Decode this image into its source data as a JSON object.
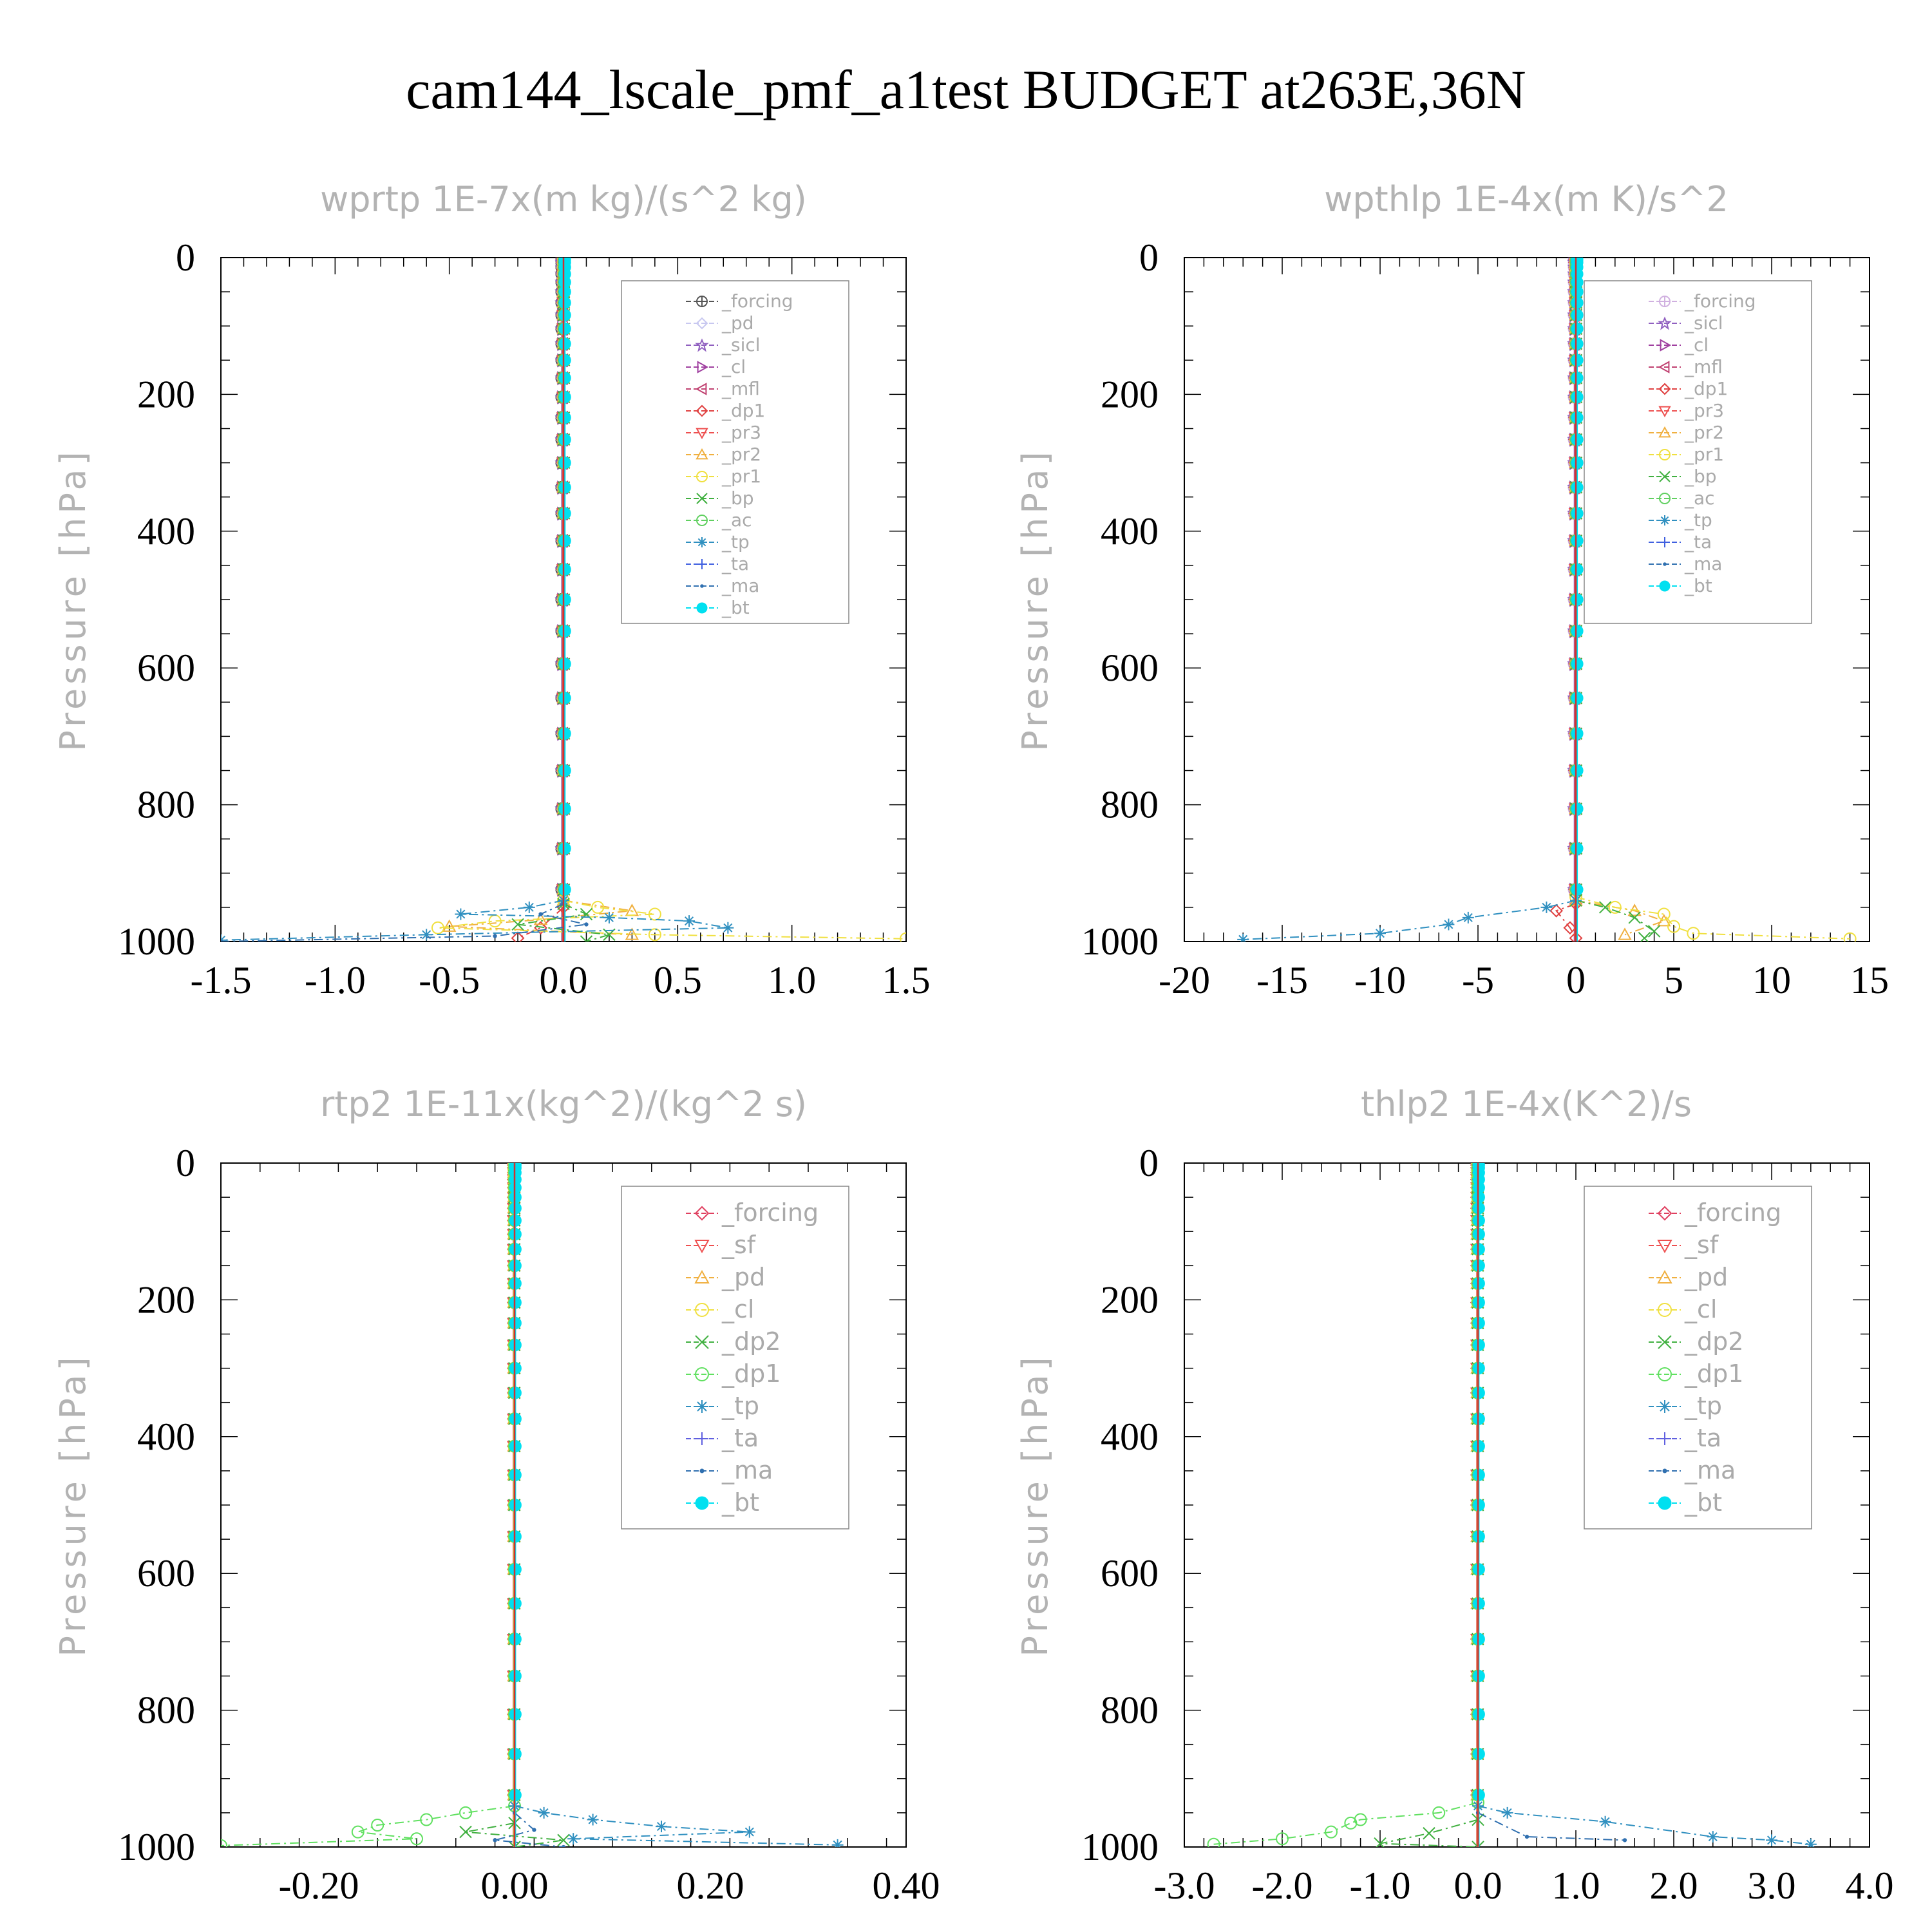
{
  "page": {
    "title": "cam144_lscale_pmf_a1test  BUDGET at263E,36N"
  },
  "chart_data": [
    {
      "type": "line",
      "title": "wprtp  1E-7x(m kg)/(s^2 kg)",
      "ylabel": "Pressure [hPa]",
      "xlim": [
        -1.5,
        1.5
      ],
      "ylim": [
        1000,
        0
      ],
      "xticks": [
        -1.5,
        -1.0,
        -0.5,
        0.0,
        0.5,
        1.0,
        1.5
      ],
      "xtick_labels": [
        "-1.5",
        "-1.0",
        "-0.5",
        "0.0",
        "0.5",
        "1.0",
        "1.5"
      ],
      "yticks": [
        0,
        200,
        400,
        600,
        800,
        1000
      ],
      "ytick_labels": [
        "0",
        "200",
        "400",
        "600",
        "800",
        "1000"
      ],
      "legend_position": "top-right",
      "series": [
        {
          "name": "_forcing",
          "color": "#555555",
          "marker": "circle-plus"
        },
        {
          "name": "_pd",
          "color": "#c8c8f0",
          "marker": "diamond"
        },
        {
          "name": "_sicl",
          "color": "#9060c0",
          "marker": "star"
        },
        {
          "name": "_cl",
          "color": "#a040a0",
          "marker": "triangle-right"
        },
        {
          "name": "_mfl",
          "color": "#c04070",
          "marker": "triangle-left"
        },
        {
          "name": "_dp1",
          "color": "#e04040",
          "marker": "diamond"
        },
        {
          "name": "_pr3",
          "color": "#ee5050",
          "marker": "triangle-down"
        },
        {
          "name": "_pr2",
          "color": "#f0b040",
          "marker": "triangle-up"
        },
        {
          "name": "_pr1",
          "color": "#f0e040",
          "marker": "circle"
        },
        {
          "name": "_bp",
          "color": "#40b040",
          "marker": "x"
        },
        {
          "name": "_ac",
          "color": "#60d060",
          "marker": "circle"
        },
        {
          "name": "_tp",
          "color": "#3090c0",
          "marker": "asterisk"
        },
        {
          "name": "_ta",
          "color": "#4060e0",
          "marker": "plus"
        },
        {
          "name": "_ma",
          "color": "#3070b0",
          "marker": "dot"
        },
        {
          "name": "_bt",
          "color": "#00e0f0",
          "marker": "filled-circle"
        }
      ],
      "near_surface": {
        "_tp": [
          [
            0.0,
            940
          ],
          [
            -0.15,
            950
          ],
          [
            -0.45,
            960
          ],
          [
            0.2,
            965
          ],
          [
            0.55,
            970
          ],
          [
            0.72,
            980
          ],
          [
            -0.6,
            990
          ],
          [
            -1.5,
            998
          ]
        ],
        "_pr1": [
          [
            0.0,
            940
          ],
          [
            0.15,
            950
          ],
          [
            0.4,
            960
          ],
          [
            -0.3,
            970
          ],
          [
            -0.55,
            980
          ],
          [
            0.4,
            990
          ],
          [
            1.5,
            996
          ]
        ],
        "_bp": [
          [
            0.0,
            945
          ],
          [
            0.1,
            960
          ],
          [
            -0.2,
            975
          ],
          [
            0.2,
            990
          ],
          [
            0.1,
            1000
          ]
        ],
        "_pr2": [
          [
            0.0,
            940
          ],
          [
            0.3,
            955
          ],
          [
            -0.1,
            968
          ],
          [
            -0.5,
            978
          ],
          [
            0.3,
            990
          ]
        ],
        "_ma": [
          [
            0.0,
            945
          ],
          [
            -0.1,
            960
          ],
          [
            0.1,
            975
          ],
          [
            -0.3,
            992
          ],
          [
            -1.5,
            1000
          ]
        ],
        "_dp1": [
          [
            0.0,
            950
          ],
          [
            -0.1,
            980
          ],
          [
            -0.2,
            995
          ]
        ]
      }
    },
    {
      "type": "line",
      "title": "wpthlp  1E-4x(m K)/s^2",
      "ylabel": "Pressure [hPa]",
      "xlim": [
        -20,
        15
      ],
      "ylim": [
        1000,
        0
      ],
      "xticks": [
        -20,
        -15,
        -10,
        -5,
        0,
        5,
        10,
        15
      ],
      "xtick_labels": [
        "-20",
        "-15",
        "-10",
        "-5",
        "0",
        "5",
        "10",
        "15"
      ],
      "yticks": [
        0,
        200,
        400,
        600,
        800,
        1000
      ],
      "ytick_labels": [
        "0",
        "200",
        "400",
        "600",
        "800",
        "1000"
      ],
      "legend_position": "top-right",
      "series": [
        {
          "name": "_forcing",
          "color": "#d0b0e0",
          "marker": "circle-plus"
        },
        {
          "name": "_sicl",
          "color": "#9060c0",
          "marker": "star"
        },
        {
          "name": "_cl",
          "color": "#a040a0",
          "marker": "triangle-right"
        },
        {
          "name": "_mfl",
          "color": "#c04070",
          "marker": "triangle-left"
        },
        {
          "name": "_dp1",
          "color": "#e04040",
          "marker": "diamond"
        },
        {
          "name": "_pr3",
          "color": "#ee5050",
          "marker": "triangle-down"
        },
        {
          "name": "_pr2",
          "color": "#f0b040",
          "marker": "triangle-up"
        },
        {
          "name": "_pr1",
          "color": "#f0e040",
          "marker": "circle"
        },
        {
          "name": "_bp",
          "color": "#40b040",
          "marker": "x"
        },
        {
          "name": "_ac",
          "color": "#60d060",
          "marker": "circle"
        },
        {
          "name": "_tp",
          "color": "#3090c0",
          "marker": "asterisk"
        },
        {
          "name": "_ta",
          "color": "#4060e0",
          "marker": "plus"
        },
        {
          "name": "_ma",
          "color": "#3070b0",
          "marker": "dot"
        },
        {
          "name": "_bt",
          "color": "#00e0f0",
          "marker": "filled-circle"
        }
      ],
      "near_surface": {
        "_tp": [
          [
            0.0,
            940
          ],
          [
            -1.5,
            950
          ],
          [
            -5.5,
            965
          ],
          [
            -6.5,
            975
          ],
          [
            -10,
            988
          ],
          [
            -17,
            997
          ]
        ],
        "_pr1": [
          [
            0.0,
            935
          ],
          [
            2.0,
            950
          ],
          [
            4.5,
            960
          ],
          [
            5.0,
            978
          ],
          [
            6.0,
            988
          ],
          [
            14,
            996
          ]
        ],
        "_bp": [
          [
            0.0,
            940
          ],
          [
            1.5,
            950
          ],
          [
            3.0,
            965
          ],
          [
            4.0,
            985
          ],
          [
            3.5,
            995
          ]
        ],
        "_pr2": [
          [
            0.0,
            940
          ],
          [
            3.0,
            955
          ],
          [
            4.5,
            970
          ],
          [
            2.5,
            990
          ]
        ],
        "_dp1": [
          [
            0.0,
            945
          ],
          [
            -1.0,
            955
          ],
          [
            -0.3,
            980
          ],
          [
            0.0,
            995
          ]
        ]
      }
    },
    {
      "type": "line",
      "title": "rtp2  1E-11x(kg^2)/(kg^2 s)",
      "ylabel": "Pressure [hPa]",
      "xlim": [
        -0.3,
        0.4
      ],
      "ylim": [
        1000,
        0
      ],
      "xticks": [
        -0.2,
        0.0,
        0.2,
        0.4
      ],
      "xtick_labels": [
        "-0.20",
        "0.00",
        "0.20",
        "0.40"
      ],
      "yticks": [
        0,
        200,
        400,
        600,
        800,
        1000
      ],
      "ytick_labels": [
        "0",
        "200",
        "400",
        "600",
        "800",
        "1000"
      ],
      "legend_position": "top-right",
      "series": [
        {
          "name": "_forcing",
          "color": "#e04060",
          "marker": "diamond"
        },
        {
          "name": "_sf",
          "color": "#ee5050",
          "marker": "triangle-down"
        },
        {
          "name": "_pd",
          "color": "#f0b040",
          "marker": "triangle-up"
        },
        {
          "name": "_cl",
          "color": "#f0e040",
          "marker": "circle"
        },
        {
          "name": "_dp2",
          "color": "#40b040",
          "marker": "x"
        },
        {
          "name": "_dp1",
          "color": "#60e060",
          "marker": "circle"
        },
        {
          "name": "_tp",
          "color": "#3090c0",
          "marker": "asterisk"
        },
        {
          "name": "_ta",
          "color": "#6060e0",
          "marker": "plus"
        },
        {
          "name": "_ma",
          "color": "#3070b0",
          "marker": "dot"
        },
        {
          "name": "_bt",
          "color": "#00e0f0",
          "marker": "filled-circle"
        }
      ],
      "near_surface": {
        "_dp1": [
          [
            0.0,
            940
          ],
          [
            -0.05,
            950
          ],
          [
            -0.09,
            960
          ],
          [
            -0.14,
            968
          ],
          [
            -0.16,
            978
          ],
          [
            -0.1,
            988
          ],
          [
            -0.3,
            998
          ]
        ],
        "_tp": [
          [
            0.0,
            940
          ],
          [
            0.03,
            950
          ],
          [
            0.08,
            960
          ],
          [
            0.15,
            970
          ],
          [
            0.24,
            978
          ],
          [
            0.06,
            988
          ],
          [
            0.33,
            997
          ]
        ],
        "_dp2": [
          [
            0.0,
            965
          ],
          [
            -0.05,
            978
          ],
          [
            0.05,
            990
          ],
          [
            0.0,
            1000
          ]
        ],
        "_ma": [
          [
            0.0,
            950
          ],
          [
            0.02,
            975
          ],
          [
            -0.02,
            990
          ],
          [
            0.05,
            1000
          ]
        ]
      }
    },
    {
      "type": "line",
      "title": "thlp2  1E-4x(K^2)/s",
      "ylabel": "Pressure [hPa]",
      "xlim": [
        -3.0,
        4.0
      ],
      "ylim": [
        1000,
        0
      ],
      "xticks": [
        -3.0,
        -2.0,
        -1.0,
        0.0,
        1.0,
        2.0,
        3.0,
        4.0
      ],
      "xtick_labels": [
        "-3.0",
        "-2.0",
        "-1.0",
        "0.0",
        "1.0",
        "2.0",
        "3.0",
        "4.0"
      ],
      "yticks": [
        0,
        200,
        400,
        600,
        800,
        1000
      ],
      "ytick_labels": [
        "0",
        "200",
        "400",
        "600",
        "800",
        "1000"
      ],
      "legend_position": "top-right",
      "series": [
        {
          "name": "_forcing",
          "color": "#e04060",
          "marker": "diamond"
        },
        {
          "name": "_sf",
          "color": "#ee5050",
          "marker": "triangle-down"
        },
        {
          "name": "_pd",
          "color": "#f0b040",
          "marker": "triangle-up"
        },
        {
          "name": "_cl",
          "color": "#f0e040",
          "marker": "circle"
        },
        {
          "name": "_dp2",
          "color": "#40b040",
          "marker": "x"
        },
        {
          "name": "_dp1",
          "color": "#60e060",
          "marker": "circle"
        },
        {
          "name": "_tp",
          "color": "#3090c0",
          "marker": "asterisk"
        },
        {
          "name": "_ta",
          "color": "#6060e0",
          "marker": "plus"
        },
        {
          "name": "_ma",
          "color": "#3070b0",
          "marker": "dot"
        },
        {
          "name": "_bt",
          "color": "#00e0f0",
          "marker": "filled-circle"
        }
      ],
      "near_surface": {
        "_dp1": [
          [
            0.0,
            935
          ],
          [
            -0.4,
            950
          ],
          [
            -1.2,
            960
          ],
          [
            -1.3,
            965
          ],
          [
            -1.5,
            978
          ],
          [
            -2.0,
            988
          ],
          [
            -2.7,
            996
          ]
        ],
        "_tp": [
          [
            0.0,
            940
          ],
          [
            0.3,
            950
          ],
          [
            1.3,
            963
          ],
          [
            2.4,
            985
          ],
          [
            3.0,
            990
          ],
          [
            3.4,
            996
          ]
        ],
        "_dp2": [
          [
            0.0,
            960
          ],
          [
            -0.5,
            980
          ],
          [
            -1.0,
            995
          ],
          [
            0.0,
            1000
          ]
        ],
        "_ma": [
          [
            0.0,
            950
          ],
          [
            0.5,
            985
          ],
          [
            1.5,
            990
          ]
        ]
      }
    }
  ]
}
